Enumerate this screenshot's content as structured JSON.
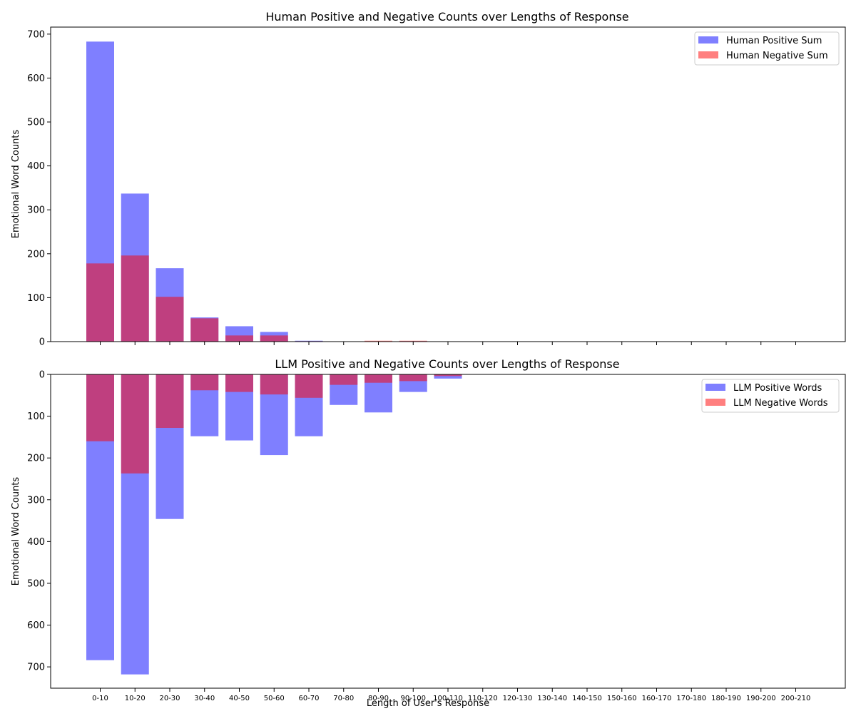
{
  "colors": {
    "positive": "#0000ff",
    "negative": "#ff0000",
    "bar_alpha": 0.5
  },
  "xlabel": "Length of User's Response",
  "chart_data": [
    {
      "type": "bar",
      "title": "Human Positive and Negative Counts over Lengths of Response",
      "ylabel": "Emotional Word Counts",
      "xlabel": "",
      "categories": [
        "0-10",
        "10-20",
        "20-30",
        "30-40",
        "40-50",
        "50-60",
        "60-70",
        "70-80",
        "80-90",
        "90-100",
        "100-110",
        "110-120",
        "120-130",
        "130-140",
        "140-150",
        "150-160",
        "160-170",
        "170-180",
        "180-190",
        "190-200",
        "200-210"
      ],
      "ylim": [
        0,
        716
      ],
      "yticks": [
        0,
        100,
        200,
        300,
        400,
        500,
        600,
        700
      ],
      "inverted_y": false,
      "series": [
        {
          "name": "Human Positive Sum",
          "color": "#0000ff",
          "values": [
            683,
            337,
            167,
            55,
            35,
            22,
            2,
            0,
            0,
            1,
            0,
            0,
            0,
            0,
            0,
            0,
            0,
            0,
            0,
            0,
            0
          ]
        },
        {
          "name": "Human Negative Sum",
          "color": "#ff0000",
          "values": [
            178,
            196,
            102,
            53,
            14,
            14,
            1,
            0,
            2,
            2,
            0,
            0,
            0,
            0,
            0,
            0,
            0,
            0,
            0,
            0,
            0
          ]
        }
      ],
      "legend": "top-right",
      "grid": false
    },
    {
      "type": "bar",
      "title": "LLM Positive and Negative Counts over Lengths of Response",
      "ylabel": "Emotional Word Counts",
      "xlabel": "Length of User's Response",
      "categories": [
        "0-10",
        "10-20",
        "20-30",
        "30-40",
        "40-50",
        "50-60",
        "60-70",
        "70-80",
        "80-90",
        "90-100",
        "100-110",
        "110-120",
        "120-130",
        "130-140",
        "140-150",
        "150-160",
        "160-170",
        "170-180",
        "180-190",
        "190-200",
        "200-210"
      ],
      "ylim": [
        0,
        751
      ],
      "yticks": [
        0,
        100,
        200,
        300,
        400,
        500,
        600,
        700
      ],
      "inverted_y": true,
      "series": [
        {
          "name": "LLM Positive Words",
          "color": "#0000ff",
          "values": [
            684,
            718,
            346,
            148,
            158,
            193,
            148,
            73,
            91,
            42,
            10,
            0,
            0,
            0,
            0,
            0,
            0,
            0,
            0,
            0,
            0
          ]
        },
        {
          "name": "LLM Negative Words",
          "color": "#ff0000",
          "values": [
            160,
            237,
            128,
            38,
            42,
            48,
            56,
            25,
            20,
            16,
            4,
            0,
            0,
            0,
            0,
            0,
            0,
            0,
            0,
            0,
            0
          ]
        }
      ],
      "legend": "top-right",
      "grid": false
    }
  ]
}
